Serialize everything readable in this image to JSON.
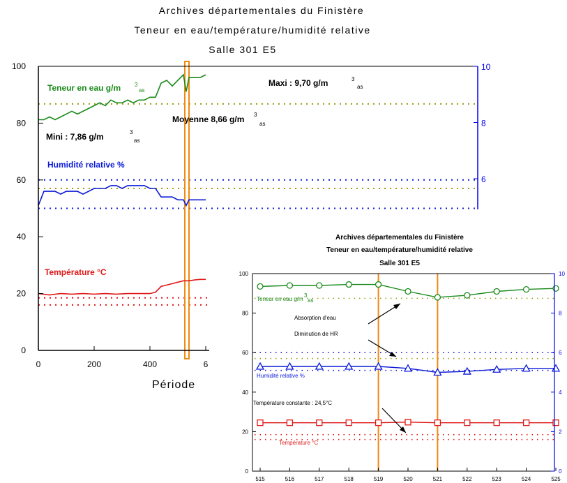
{
  "colors": {
    "green": "#1a8a1a",
    "blue": "#0a1ad8",
    "red": "#e01818",
    "orange": "#f08a10",
    "olive": "#9a9a10",
    "right_axis": "#0000ee"
  },
  "chart_data": [
    {
      "type": "line",
      "title": [
        "Archives départementales du Finistère",
        "Teneur en eau/température/humidité relative",
        "Salle 301 E5"
      ],
      "xlabel": "Période",
      "xlim": [
        0,
        600
      ],
      "ylim": [
        0,
        100
      ],
      "y2lim": [
        0,
        10
      ],
      "x_ticks": [
        "0",
        "200",
        "400",
        "6"
      ],
      "y_ticks": [
        "0",
        "20",
        "40",
        "60",
        "80",
        "100"
      ],
      "y2_ticks": [
        "6",
        "8",
        "10"
      ],
      "series": [
        {
          "name": "Teneur en eau g/m",
          "axis": "right",
          "color": "green",
          "x": [
            0,
            20,
            40,
            60,
            80,
            100,
            120,
            140,
            160,
            180,
            200,
            220,
            240,
            260,
            280,
            300,
            320,
            340,
            360,
            380,
            400,
            420,
            440,
            460,
            480,
            500,
            520,
            530,
            540,
            560,
            580,
            600
          ],
          "values": [
            8.1,
            8.1,
            8.2,
            8.1,
            8.2,
            8.3,
            8.4,
            8.3,
            8.4,
            8.5,
            8.6,
            8.7,
            8.6,
            8.8,
            8.7,
            8.7,
            8.8,
            8.7,
            8.8,
            8.8,
            8.9,
            8.9,
            9.4,
            9.5,
            9.3,
            9.5,
            9.7,
            9.1,
            9.6,
            9.6,
            9.6,
            9.7
          ]
        },
        {
          "name": "Humidité relative %",
          "axis": "left",
          "color": "blue",
          "x": [
            0,
            20,
            40,
            60,
            80,
            100,
            120,
            140,
            160,
            180,
            200,
            220,
            240,
            260,
            280,
            300,
            320,
            340,
            360,
            380,
            400,
            420,
            440,
            460,
            480,
            500,
            520,
            530,
            540,
            560,
            580,
            600
          ],
          "values": [
            51,
            56,
            56,
            56,
            55,
            56,
            56,
            56,
            55,
            56,
            57,
            57,
            57,
            58,
            58,
            57,
            58,
            58,
            58,
            58,
            57,
            57,
            54,
            54,
            54,
            53,
            53,
            51,
            53,
            53,
            53,
            53
          ]
        },
        {
          "name": "Température °C",
          "axis": "left",
          "color": "red",
          "x": [
            0,
            40,
            80,
            120,
            160,
            200,
            240,
            280,
            320,
            360,
            400,
            420,
            440,
            460,
            480,
            500,
            520,
            540,
            560,
            580,
            600
          ],
          "values": [
            20,
            19.5,
            20,
            19.8,
            20,
            19.8,
            20,
            19.8,
            20,
            20,
            20,
            20.5,
            22.5,
            23,
            23.5,
            24,
            24.5,
            24.5,
            24.8,
            25,
            25
          ]
        }
      ],
      "reference_lines": [
        {
          "axis": "right",
          "value": 8.66,
          "color": "olive"
        },
        {
          "axis": "left",
          "value": 60,
          "color": "blue"
        },
        {
          "axis": "left",
          "value": 50,
          "color": "blue"
        },
        {
          "axis": "left",
          "value": 57,
          "color": "olive"
        },
        {
          "axis": "left",
          "value": 18.5,
          "color": "red"
        },
        {
          "axis": "left",
          "value": 16,
          "color": "red"
        }
      ],
      "highlight_band": {
        "x": [
          525,
          540
        ],
        "color": "orange"
      },
      "annotations": {
        "max": "Maxi : 9,70 g/m",
        "max_sub": "3",
        "max_sub2": "as",
        "mean": "Moyenne 8,66 g/m",
        "mean_sub": "3",
        "mean_sub2": "as",
        "min": "Mini : 7,86 g/m",
        "min_sub": "3",
        "min_sub2": "as",
        "water_label": "Teneur en eau g/m",
        "water_sub": "3",
        "water_sub2": "as",
        "rh_label": "Humidité relative %",
        "temp_label": "Température °C"
      }
    },
    {
      "type": "line",
      "title": [
        "Archives départementales du Finistère",
        "Teneur en eau/température/humidité relative",
        "Salle 301 E5"
      ],
      "x": [
        515,
        516,
        517,
        518,
        519,
        520,
        521,
        522,
        523,
        524,
        525
      ],
      "x_ticks": [
        "515",
        "516",
        "517",
        "518",
        "519",
        "520",
        "521",
        "522",
        "523",
        "524",
        "525"
      ],
      "ylim": [
        0,
        100
      ],
      "y2lim": [
        0,
        10
      ],
      "y_ticks": [
        "0",
        "20",
        "40",
        "60",
        "80",
        "100"
      ],
      "y2_ticks": [
        "0",
        "2",
        "4",
        "6",
        "8",
        "10"
      ],
      "series": [
        {
          "name": "Teneur en eau g/m",
          "axis": "right",
          "color": "green",
          "marker": "circle",
          "values": [
            9.35,
            9.4,
            9.4,
            9.45,
            9.45,
            9.1,
            8.8,
            8.9,
            9.1,
            9.2,
            9.25
          ]
        },
        {
          "name": "Humidité relative %",
          "axis": "left",
          "color": "blue",
          "marker": "triangle",
          "values": [
            53,
            53,
            53,
            53,
            53,
            52,
            50,
            50.5,
            51.5,
            52,
            52
          ]
        },
        {
          "name": "Température °C",
          "axis": "left",
          "color": "red",
          "marker": "square",
          "values": [
            24.5,
            24.5,
            24.5,
            24.5,
            24.5,
            24.8,
            24.5,
            24.5,
            24.5,
            24.5,
            24.5
          ]
        }
      ],
      "reference_lines": [
        {
          "axis": "right",
          "value": 8.75,
          "color": "olive"
        },
        {
          "axis": "left",
          "value": 60,
          "color": "blue"
        },
        {
          "axis": "left",
          "value": 51,
          "color": "blue"
        },
        {
          "axis": "left",
          "value": 57,
          "color": "olive"
        },
        {
          "axis": "left",
          "value": 18.5,
          "color": "red"
        },
        {
          "axis": "left",
          "value": 16,
          "color": "red"
        }
      ],
      "vertical_lines": [
        {
          "x": 519,
          "color": "orange"
        },
        {
          "x": 521,
          "color": "orange"
        }
      ],
      "annotations": {
        "water_label": "Teneur en eau g/m",
        "water_sub": "3",
        "water_sub2": "as",
        "rh_label": "Humidité relative %",
        "temp_label": "Température °C",
        "absorption": "Absorption d'eau",
        "hr_drop": "Diminution de HR",
        "const_temp": "Température constante : 24,5°C"
      }
    }
  ]
}
